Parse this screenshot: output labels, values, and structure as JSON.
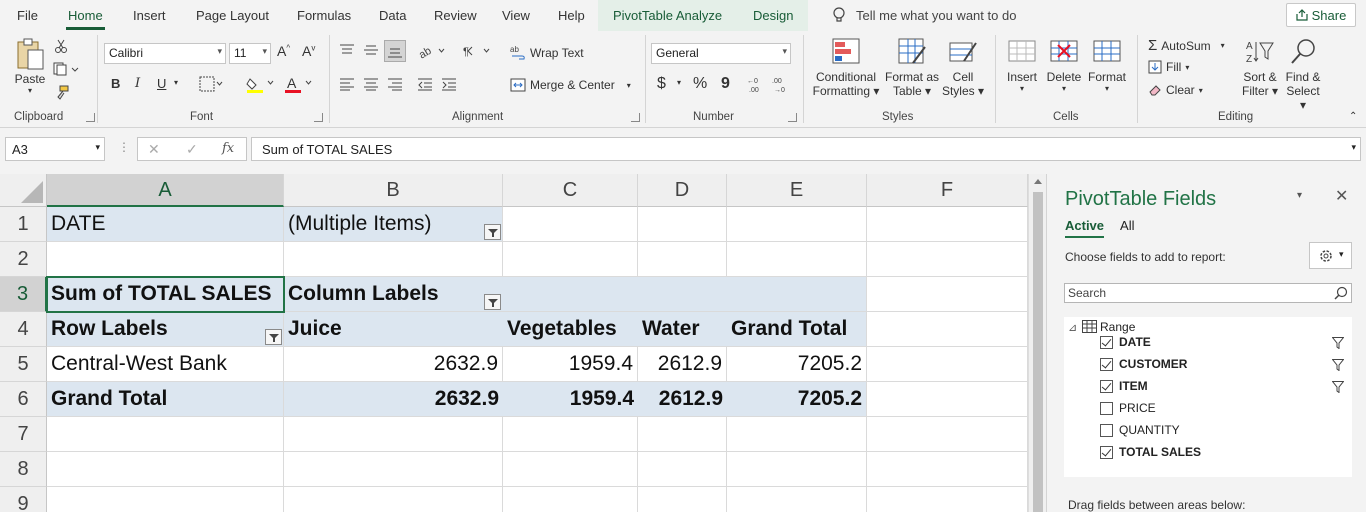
{
  "menu": {
    "tabs": [
      "File",
      "Home",
      "Insert",
      "Page Layout",
      "Formulas",
      "Data",
      "Review",
      "View",
      "Help",
      "PivotTable Analyze",
      "Design"
    ],
    "tell_me": "Tell me what you want to do",
    "share": "Share"
  },
  "ribbon": {
    "clipboard": {
      "label": "Clipboard",
      "paste": "Paste"
    },
    "font": {
      "label": "Font",
      "name": "Calibri",
      "size": "11",
      "bold": "B",
      "italic": "I",
      "underline": "U"
    },
    "alignment": {
      "label": "Alignment",
      "wrap": "Wrap Text",
      "merge": "Merge & Center"
    },
    "number": {
      "label": "Number",
      "format": "General",
      "currency": "$",
      "percent": "%",
      "comma": "9"
    },
    "styles": {
      "label": "Styles",
      "conditional": "Conditional",
      "conditional2": "Formatting",
      "format_as": "Format as",
      "table": "Table",
      "cell": "Cell",
      "cell_styles": "Styles"
    },
    "cells": {
      "label": "Cells",
      "insert": "Insert",
      "delete": "Delete",
      "format": "Format"
    },
    "editing": {
      "label": "Editing",
      "autosum": "AutoSum",
      "fill": "Fill",
      "clear": "Clear",
      "sort": "Sort &",
      "filter": "Filter",
      "find": "Find &",
      "select": "Select"
    }
  },
  "formula_bar": {
    "name_box": "A3",
    "fx": "fx",
    "formula": "Sum of TOTAL SALES"
  },
  "grid": {
    "columns": [
      "A",
      "B",
      "C",
      "D",
      "E",
      "F"
    ],
    "rows": [
      "1",
      "2",
      "3",
      "4",
      "5",
      "6",
      "7",
      "8",
      "9"
    ],
    "r1": {
      "a": "DATE",
      "b": "(Multiple Items)"
    },
    "r3": {
      "a": "Sum of TOTAL SALES",
      "b": "Column Labels"
    },
    "r4": {
      "a": "Row Labels",
      "b": "Juice",
      "c": "Vegetables",
      "d": "Water",
      "e": "Grand Total"
    },
    "r5": {
      "a": "Central-West Bank",
      "b": "2632.9",
      "c": "1959.4",
      "d": "2612.9",
      "e": "7205.2"
    },
    "r6": {
      "a": "Grand Total",
      "b": "2632.9",
      "c": "1959.4",
      "d": "2612.9",
      "e": "7205.2"
    }
  },
  "pivot_pane": {
    "title": "PivotTable Fields",
    "tab_active": "Active",
    "tab_all": "All",
    "choose": "Choose fields to add to report:",
    "search_placeholder": "Search",
    "range": "Range",
    "fields": [
      {
        "name": "DATE",
        "checked": true,
        "filtered": true
      },
      {
        "name": "CUSTOMER",
        "checked": true,
        "filtered": true
      },
      {
        "name": "ITEM",
        "checked": true,
        "filtered": true
      },
      {
        "name": "PRICE",
        "checked": false,
        "filtered": false
      },
      {
        "name": "QUANTITY",
        "checked": false,
        "filtered": false
      },
      {
        "name": "TOTAL SALES",
        "checked": true,
        "filtered": false
      }
    ],
    "drag": "Drag fields between areas below:"
  },
  "colors": {
    "accent": "#217346",
    "pivot_fill": "#dce6f0"
  }
}
